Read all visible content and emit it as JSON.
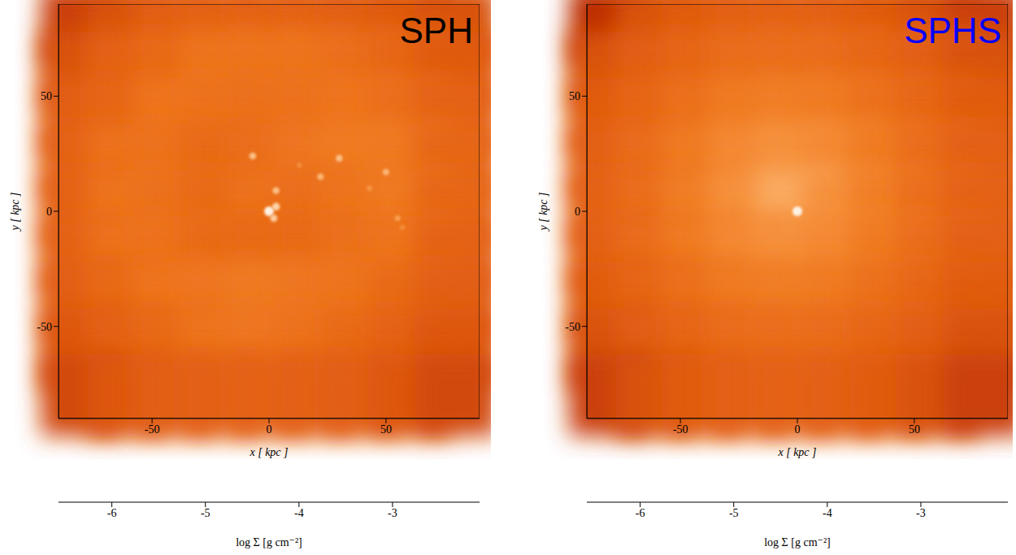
{
  "chart_data": [
    {
      "type": "heatmap",
      "title": "SPH",
      "color": "#000000",
      "x_label": "x [ kpc ]",
      "y_label": "y [ kpc ]",
      "xlim": [
        -90,
        90
      ],
      "ylim": [
        -90,
        90
      ],
      "xticks": [
        -50,
        0,
        50
      ],
      "yticks": [
        -50,
        0,
        50
      ],
      "x": [
        -80,
        -60,
        -40,
        -20,
        0,
        20,
        40,
        60,
        80
      ],
      "y": [
        80,
        60,
        40,
        20,
        0,
        -20,
        -40,
        -60,
        -80
      ],
      "cells": [
        [
          -4.35,
          -4.25,
          -4.15,
          -4.1,
          -4.1,
          -4.1,
          -4.15,
          -4.2,
          -4.25
        ],
        [
          -4.25,
          -4.1,
          -4.0,
          -3.88,
          -3.88,
          -3.88,
          -3.95,
          -4.05,
          -4.2
        ],
        [
          -4.15,
          -4.05,
          -3.86,
          -3.9,
          -3.92,
          -3.9,
          -3.86,
          -3.95,
          -4.1
        ],
        [
          -4.1,
          -3.9,
          -3.9,
          -4.0,
          -3.95,
          -3.85,
          -3.8,
          -3.82,
          -4.05
        ],
        [
          -4.1,
          -3.88,
          -3.92,
          -4.0,
          -3.9,
          -3.95,
          -3.88,
          -3.82,
          -4.05
        ],
        [
          -4.1,
          -3.9,
          -3.9,
          -4.0,
          -4.0,
          -4.0,
          -3.92,
          -3.88,
          -4.1
        ],
        [
          -4.15,
          -4.0,
          -3.86,
          -3.85,
          -3.82,
          -3.85,
          -3.88,
          -4.0,
          -4.15
        ],
        [
          -4.22,
          -4.1,
          -4.0,
          -3.88,
          -3.85,
          -3.9,
          -4.0,
          -4.1,
          -4.22
        ],
        [
          -4.3,
          -4.22,
          -4.15,
          -4.12,
          -4.1,
          -4.12,
          -4.15,
          -4.22,
          -4.3
        ]
      ],
      "peaks": [
        {
          "x": 0,
          "y": 0,
          "value": -2.3
        },
        {
          "x": 3,
          "y": 2,
          "value": -2.8
        },
        {
          "x": 2,
          "y": -3,
          "value": -2.9
        },
        {
          "x": 3,
          "y": 9,
          "value": -3.0
        },
        {
          "x": -7,
          "y": 24,
          "value": -3.0
        },
        {
          "x": 30,
          "y": 23,
          "value": -3.0
        },
        {
          "x": 22,
          "y": 15,
          "value": -3.1
        },
        {
          "x": 50,
          "y": 17,
          "value": -3.1
        },
        {
          "x": 13,
          "y": 20,
          "value": -3.5
        },
        {
          "x": 43,
          "y": 10,
          "value": -3.4
        },
        {
          "x": 55,
          "y": -3,
          "value": -3.3
        },
        {
          "x": 57,
          "y": -7,
          "value": -3.5
        }
      ],
      "colorbar": {
        "label": "log Σ [g cm⁻²]",
        "range": [
          -6.57,
          -2.07
        ],
        "ticks": [
          -6,
          -5,
          -4,
          -3
        ]
      }
    },
    {
      "type": "heatmap",
      "title": "SPHS",
      "color": "#0000ff",
      "x_label": "x [ kpc ]",
      "y_label": "y [ kpc ]",
      "xlim": [
        -90,
        90
      ],
      "ylim": [
        -90,
        90
      ],
      "xticks": [
        -50,
        0,
        50
      ],
      "yticks": [
        -50,
        0,
        50
      ],
      "x": [
        -80,
        -60,
        -40,
        -20,
        0,
        20,
        40,
        60,
        80
      ],
      "y": [
        80,
        60,
        40,
        20,
        0,
        -20,
        -40,
        -60,
        -80
      ],
      "cells": [
        [
          -4.45,
          -4.25,
          -4.18,
          -4.12,
          -4.1,
          -4.12,
          -4.18,
          -4.25,
          -4.35
        ],
        [
          -4.25,
          -4.15,
          -4.05,
          -3.97,
          -3.95,
          -3.97,
          -4.05,
          -4.15,
          -4.25
        ],
        [
          -4.18,
          -4.05,
          -3.92,
          -3.8,
          -3.75,
          -3.8,
          -3.92,
          -4.05,
          -4.18
        ],
        [
          -4.12,
          -3.97,
          -3.8,
          -3.6,
          -3.5,
          -3.6,
          -3.8,
          -3.97,
          -4.12
        ],
        [
          -4.1,
          -3.95,
          -3.75,
          -3.5,
          -3.2,
          -3.5,
          -3.75,
          -3.95,
          -4.1
        ],
        [
          -4.12,
          -3.97,
          -3.8,
          -3.6,
          -3.5,
          -3.6,
          -3.8,
          -3.97,
          -4.12
        ],
        [
          -4.18,
          -4.05,
          -3.92,
          -3.8,
          -3.75,
          -3.8,
          -3.92,
          -4.05,
          -4.18
        ],
        [
          -4.25,
          -4.15,
          -4.05,
          -3.97,
          -3.95,
          -3.97,
          -4.05,
          -4.15,
          -4.25
        ],
        [
          -4.35,
          -4.25,
          -4.18,
          -4.12,
          -4.1,
          -4.12,
          -4.18,
          -4.25,
          -4.35
        ]
      ],
      "peaks": [
        {
          "x": 0,
          "y": 0,
          "value": -2.3
        }
      ],
      "colorbar": {
        "label": "log Σ [g cm⁻²]",
        "range": [
          -6.57,
          -2.07
        ],
        "ticks": [
          -6,
          -5,
          -4,
          -3
        ]
      }
    }
  ]
}
